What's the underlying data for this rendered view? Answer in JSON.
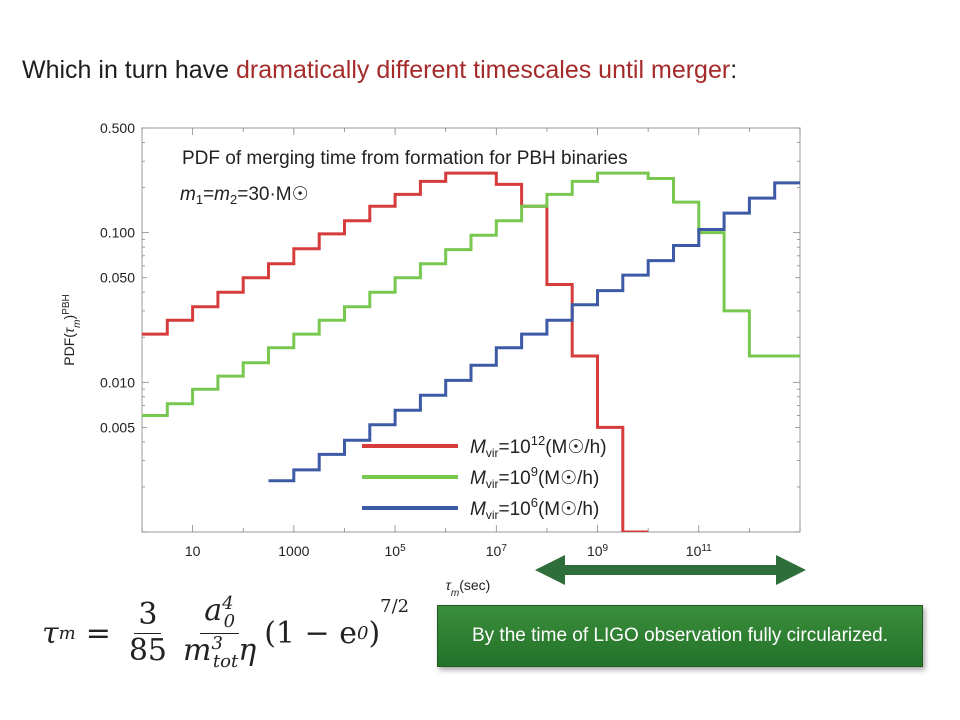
{
  "slide": {
    "title_prefix": "Which in turn have ",
    "title_highlight": "dramatically different timescales until merger",
    "title_suffix": ":"
  },
  "callout": {
    "text": "By the time of LIGO observation fully circularized."
  },
  "formula": {
    "lhs": "τ",
    "lhs_sub": "m",
    "equals": "=",
    "coef_num": "3",
    "coef_den": "85",
    "frac_num": "a",
    "frac_num_sup": "4",
    "frac_num_sub": "0",
    "frac_den": "m",
    "frac_den_sup": "3",
    "frac_den_sub": "tot",
    "frac_den_eta": "η",
    "rest": "(1 − e",
    "rest_sub": "0",
    "rest_close": ")",
    "exponent": "7/2"
  },
  "colors": {
    "red": "#d63c3c",
    "green": "#78c850",
    "blue": "#3c5aa5",
    "arrow": "#2e6e3a",
    "callout": "#2e7d32",
    "title_highlight": "#a52a2a"
  },
  "chart_data": {
    "type": "line",
    "step": true,
    "title": "PDF of merging time from formation for PBH binaries",
    "subtitle": "m₁=m₂=30·M☉",
    "xlabel": "τm(sec)",
    "ylabel": "PDF(τm)PBH",
    "x_scale": "log",
    "y_scale": "log",
    "xlim": [
      1,
      10000000000000
    ],
    "ylim": [
      0.001,
      0.5
    ],
    "x_ticks": [
      {
        "value": 10,
        "label": "10"
      },
      {
        "value": 1000,
        "label": "1000"
      },
      {
        "value": 100000,
        "label": "10^5"
      },
      {
        "value": 10000000,
        "label": "10^7"
      },
      {
        "value": 1000000000,
        "label": "10^9"
      },
      {
        "value": 100000000000,
        "label": "10^11"
      }
    ],
    "y_ticks": [
      {
        "value": 0.5,
        "label": "0.500"
      },
      {
        "value": 0.1,
        "label": "0.100"
      },
      {
        "value": 0.05,
        "label": "0.050"
      },
      {
        "value": 0.01,
        "label": "0.010"
      },
      {
        "value": 0.005,
        "label": "0.005"
      }
    ],
    "grid": false,
    "legend_position": "bottom-center",
    "bin_edges_log10": [
      0,
      0.5,
      1,
      1.5,
      2,
      2.5,
      3,
      3.5,
      4,
      4.5,
      5,
      5.5,
      6,
      6.5,
      7,
      7.5,
      8,
      8.5,
      9,
      9.5,
      10,
      10.5,
      11,
      11.5,
      12,
      12.5,
      13
    ],
    "series": [
      {
        "name": "Mvir=10^12(M☉/h)",
        "legend": {
          "pre": "M",
          "sub": "vir",
          "mid": "=10",
          "exp": "12",
          "post": "(M☉/h)"
        },
        "color": "#d63c3c",
        "values": [
          0.021,
          0.026,
          0.032,
          0.04,
          0.05,
          0.062,
          0.078,
          0.098,
          0.12,
          0.15,
          0.18,
          0.22,
          0.25,
          0.25,
          0.21,
          0.15,
          0.045,
          0.015,
          0.005,
          0.001,
          null,
          null,
          null,
          null,
          null,
          null
        ]
      },
      {
        "name": "Mvir=10^9(M☉/h)",
        "legend": {
          "pre": "M",
          "sub": "vir",
          "mid": "=10",
          "exp": "9",
          "post": "(M☉/h)"
        },
        "color": "#78c850",
        "values": [
          0.006,
          0.0072,
          0.009,
          0.011,
          0.0135,
          0.017,
          0.021,
          0.026,
          0.032,
          0.04,
          0.05,
          0.062,
          0.077,
          0.096,
          0.12,
          0.15,
          0.18,
          0.22,
          0.25,
          0.25,
          0.23,
          0.16,
          0.1,
          0.03,
          0.015,
          0.015
        ]
      },
      {
        "name": "Mvir=10^6(M☉/h)",
        "legend": {
          "pre": "M",
          "sub": "vir",
          "mid": "=10",
          "exp": "6",
          "post": "(M☉/h)"
        },
        "color": "#3c5aa5",
        "values": [
          null,
          null,
          null,
          null,
          null,
          0.0022,
          0.0026,
          0.0033,
          0.0041,
          0.0052,
          0.0065,
          0.0082,
          0.0103,
          0.013,
          0.017,
          0.021,
          0.026,
          0.033,
          0.041,
          0.052,
          0.065,
          0.082,
          0.105,
          0.135,
          0.17,
          0.215
        ]
      }
    ]
  }
}
